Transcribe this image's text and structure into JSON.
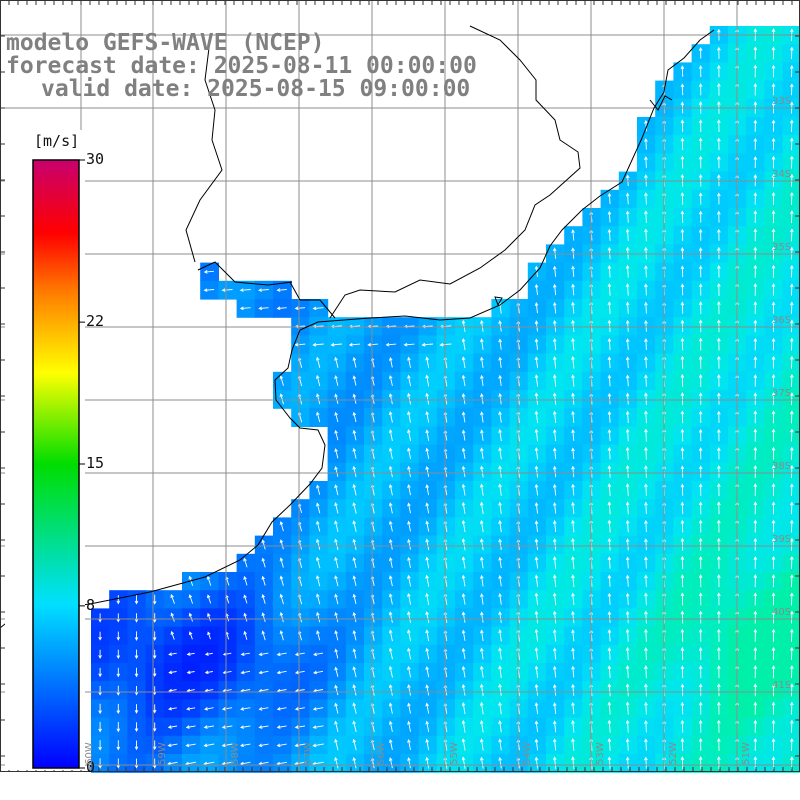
{
  "titles": {
    "line1": "modelo GEFS-WAVE (NCEP)",
    "line2": "forecast date: 2025-08-11 00:00:00",
    "line3": "valid date: 2025-08-15 09:00:00"
  },
  "colorbar": {
    "unit": "[m/s]",
    "ticks": [
      {
        "label": "30",
        "value": 30
      },
      {
        "label": "22",
        "value": 22
      },
      {
        "label": "15",
        "value": 15
      },
      {
        "label": "8",
        "value": 8
      },
      {
        "label": "0",
        "value": 0
      }
    ],
    "range": [
      0,
      30
    ],
    "colors": [
      "#0000ff",
      "#00c8ff",
      "#00e000",
      "#ffff00",
      "#ff8000",
      "#ff0000",
      "#c8006e"
    ]
  },
  "lat_labels": [
    "33S",
    "34S",
    "35S",
    "36S",
    "37S",
    "38S",
    "39S",
    "40S",
    "41S"
  ],
  "lon_labels": [
    "60W",
    "59W",
    "58W",
    "57W",
    "56W",
    "55W",
    "54W",
    "53W",
    "52W",
    "51W"
  ]
}
